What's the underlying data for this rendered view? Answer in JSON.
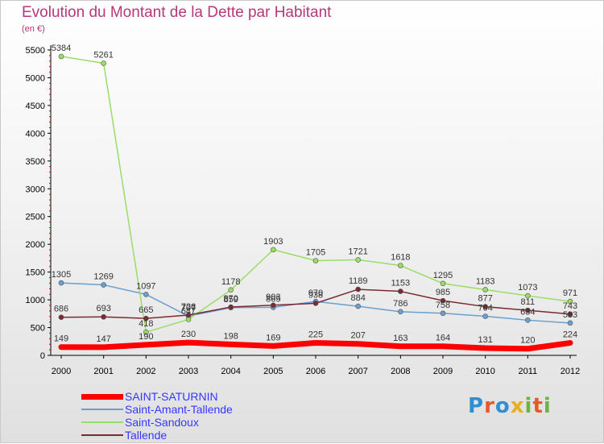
{
  "title": "Evolution du Montant de la Dette par Habitant",
  "unit_label": "(en €)",
  "brand": {
    "text": "Proxiti",
    "letters": [
      {
        "ch": "P",
        "color": "#2f8fd0"
      },
      {
        "ch": "r",
        "color": "#e8592a"
      },
      {
        "ch": "o",
        "color": "#2f8fd0"
      },
      {
        "ch": "x",
        "color": "#e8b020"
      },
      {
        "ch": "i",
        "color": "#6cb33f"
      },
      {
        "ch": "t",
        "color": "#e8592a"
      },
      {
        "ch": "i",
        "color": "#6cb33f"
      }
    ]
  },
  "chart_data": {
    "type": "line",
    "title": "Evolution du Montant de la Dette par Habitant",
    "xlabel": "",
    "ylabel": "(en €)",
    "categories": [
      "2000",
      "2001",
      "2002",
      "2003",
      "2004",
      "2005",
      "2006",
      "2007",
      "2008",
      "2009",
      "2010",
      "2011",
      "2012"
    ],
    "ylim": [
      0,
      5500
    ],
    "yticks": [
      0,
      500,
      1000,
      1500,
      2000,
      2500,
      3000,
      3500,
      4000,
      4500,
      5000,
      5500
    ],
    "grid": false,
    "legend_position": "bottom-left",
    "series": [
      {
        "name": "SAINT-SATURNIN",
        "color": "#ff0000",
        "width": 7,
        "marker": false,
        "values": [
          149,
          147,
          190,
          230,
          198,
          169,
          225,
          207,
          163,
          164,
          131,
          120,
          224
        ]
      },
      {
        "name": "Saint-Amant-Tallende",
        "color": "#6a9fd0",
        "width": 1.5,
        "marker": true,
        "values": [
          1305,
          1269,
          1097,
          707,
          859,
          865,
          970,
          884,
          786,
          758,
          704,
          634,
          583
        ]
      },
      {
        "name": "Saint-Sandoux",
        "color": "#99dd66",
        "width": 1.5,
        "marker": true,
        "values": [
          5384,
          5261,
          418,
          647,
          1178,
          1903,
          1705,
          1721,
          1618,
          1295,
          1183,
          1073,
          971
        ]
      },
      {
        "name": "Tallende",
        "color": "#7a2a32",
        "width": 1.5,
        "marker": true,
        "values": [
          686,
          693,
          665,
          726,
          870,
          903,
          938,
          1189,
          1153,
          985,
          877,
          811,
          743
        ]
      }
    ]
  }
}
